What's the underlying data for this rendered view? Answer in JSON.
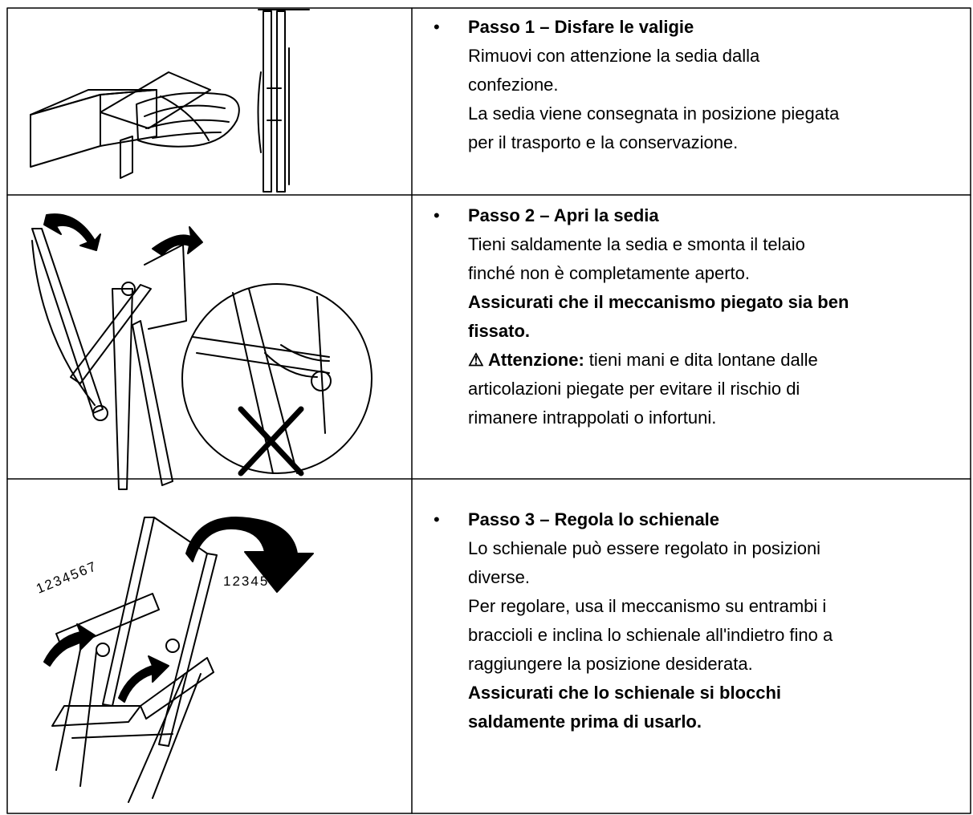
{
  "steps": [
    {
      "title": "Passo 1 – Disfare le valigie",
      "text": [
        "Rimuovi con attenzione la sedia dalla",
        "confezione.",
        "La sedia viene consegnata in posizione piegata",
        "per il trasporto e la conservazione."
      ]
    },
    {
      "title": "Passo 2 – Apri la sedia",
      "text": [
        "Tieni saldamente la sedia e smonta il telaio",
        "finché non è completamente aperto."
      ],
      "emphasis": [
        "Assicurati che il meccanismo piegato sia ben",
        "fissato."
      ],
      "warning": {
        "label": "⚠ Attenzione:",
        "text": [
          "tieni mani e dita lontane dalle",
          "articolazioni piegate per evitare il rischio di",
          "rimanere intrappolati o infortuni."
        ]
      }
    },
    {
      "title": "Passo 3 – Regola lo schienale",
      "text": [
        "Lo schienale può essere regolato in posizioni",
        "diverse.",
        "Per regolare, usa il meccanismo su entrambi i",
        "braccioli e inclina lo schienale all'indietro fino a",
        "raggiungere la posizione desiderata."
      ],
      "emphasis": [
        "Assicurati che lo schienale si blocchi",
        "saldamente prima di usarlo."
      ],
      "image_labels": [
        "1234567",
        "1234567"
      ]
    }
  ]
}
